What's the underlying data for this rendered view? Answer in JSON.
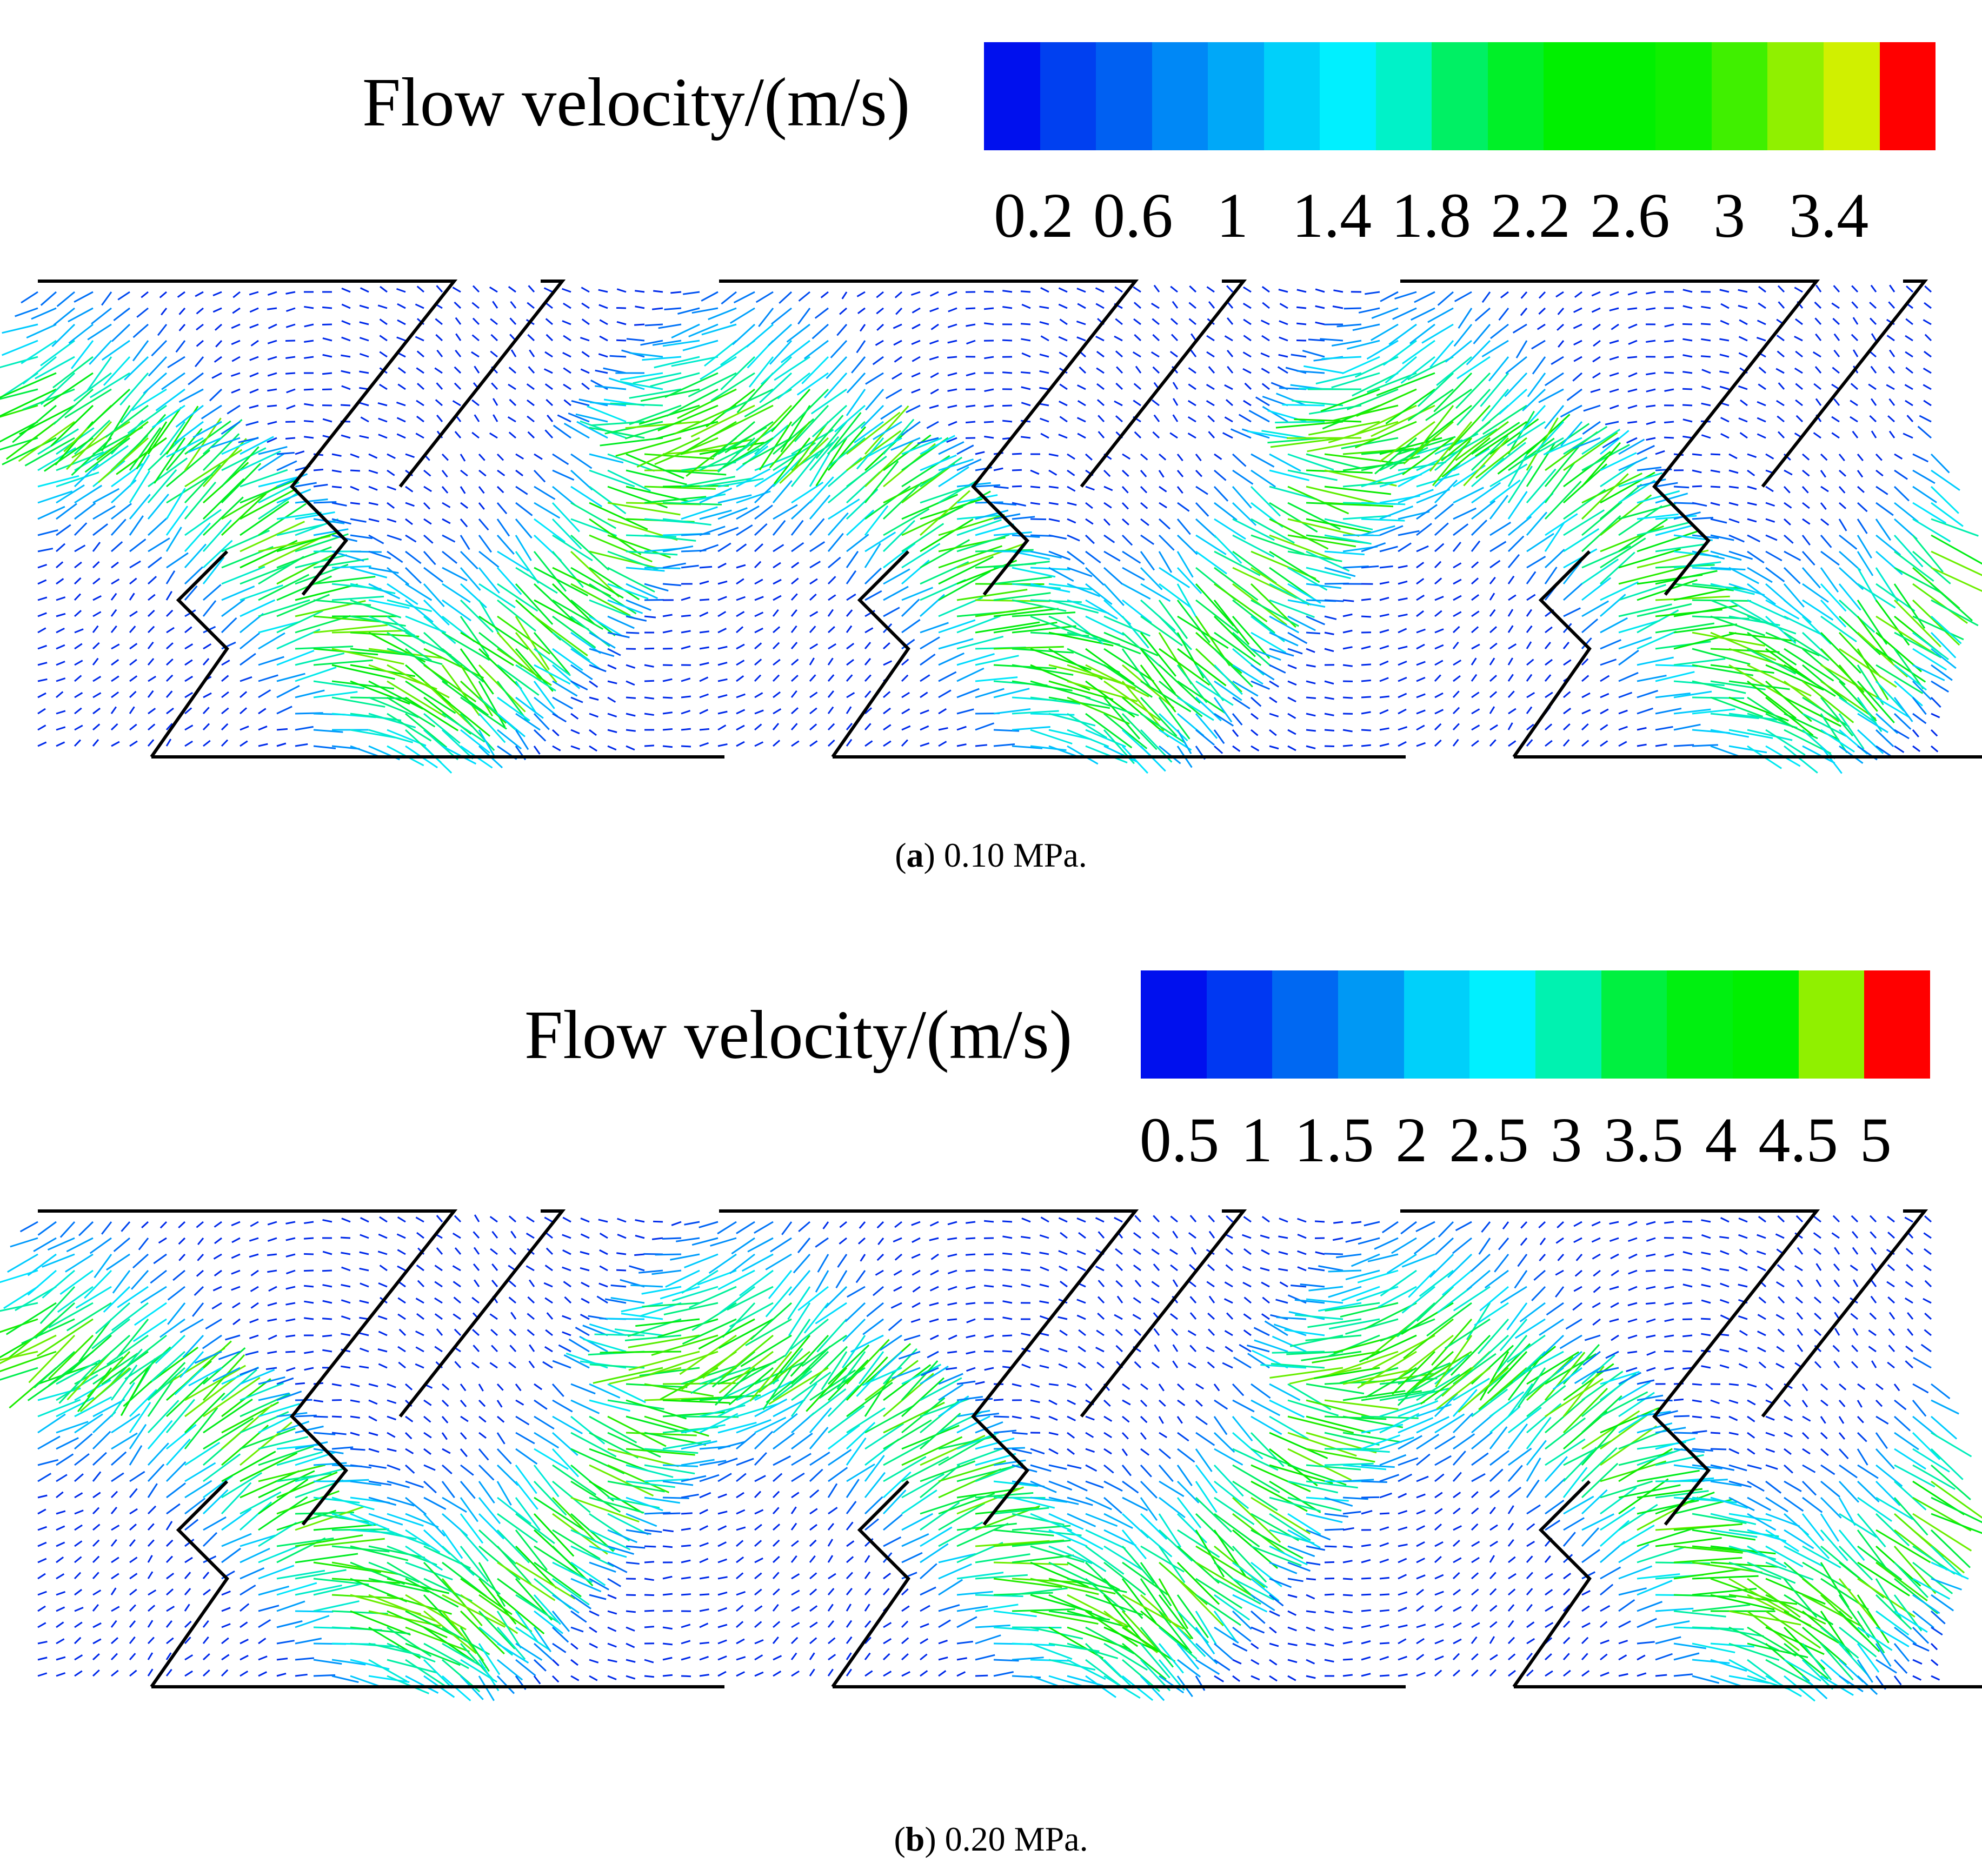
{
  "panels": [
    {
      "id": "a",
      "legend_title": "Flow velocity/(m/s)",
      "colorbar_colors": [
        "#0010ee",
        "#0040f0",
        "#0060f2",
        "#0088f6",
        "#00a8f8",
        "#00d0fa",
        "#00f0ff",
        "#00f2c8",
        "#00f064",
        "#00f028",
        "#00f000",
        "#00f000",
        "#10f000",
        "#40f000",
        "#90f000",
        "#d0f000",
        "#ff0000"
      ],
      "ticks": [
        "0.2",
        "0.6",
        "1",
        "1.4",
        "1.8",
        "2.2",
        "2.6",
        "3",
        "3.4"
      ],
      "caption_label": "a",
      "caption_text": "0.10 MPa."
    },
    {
      "id": "b",
      "legend_title": "Flow velocity/(m/s)",
      "colorbar_colors": [
        "#0010ee",
        "#0038f2",
        "#0068f2",
        "#0098f4",
        "#00d0fa",
        "#00f0ff",
        "#00f2b0",
        "#00f040",
        "#00f010",
        "#00f000",
        "#90f000",
        "#ff0000"
      ],
      "ticks": [
        "0.5",
        "1",
        "1.5",
        "2",
        "2.5",
        "3",
        "3.5",
        "4",
        "4.5",
        "5"
      ],
      "caption_label": "b",
      "caption_text": "0.20 MPa."
    }
  ]
}
